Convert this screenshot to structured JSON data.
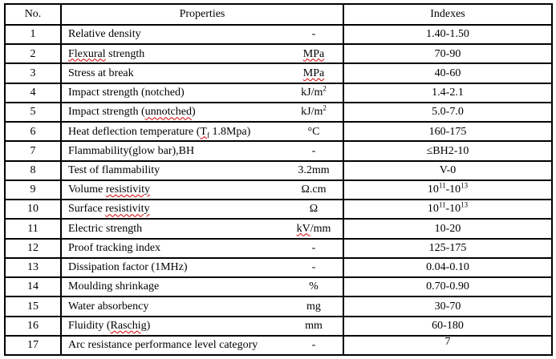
{
  "page": {
    "background_color": "#ffffff",
    "text_color": "#000000"
  },
  "table": {
    "border_color": "#000000",
    "spellcheck_underline_color": "#d40000",
    "headers": {
      "no": "No.",
      "properties": "Properties",
      "indexes": "Indexes"
    },
    "rows": [
      {
        "no": "1",
        "property": [
          {
            "t": "Relative density"
          }
        ],
        "unit": [
          {
            "t": "-"
          }
        ],
        "index": [
          {
            "t": "1.40-1.50"
          }
        ]
      },
      {
        "no": "2",
        "property": [
          {
            "t": "Flexural",
            "misspelled": true
          },
          {
            "t": " strength"
          }
        ],
        "unit": [
          {
            "t": "MPa",
            "misspelled": true
          }
        ],
        "index": [
          {
            "t": "70-90"
          }
        ]
      },
      {
        "no": "3",
        "property": [
          {
            "t": "Stress at break"
          }
        ],
        "unit": [
          {
            "t": "MPa",
            "misspelled": true
          }
        ],
        "index": [
          {
            "t": "40-60"
          }
        ]
      },
      {
        "no": "4",
        "property": [
          {
            "t": "Impact strength (notched)"
          }
        ],
        "unit": [
          {
            "t": "kJ/m"
          },
          {
            "t": "2",
            "sup": true
          }
        ],
        "index": [
          {
            "t": "1.4-2.1"
          }
        ]
      },
      {
        "no": "5",
        "property": [
          {
            "t": "Impact strength ("
          },
          {
            "t": "unnotched",
            "misspelled": true
          },
          {
            "t": ")"
          }
        ],
        "unit": [
          {
            "t": "kJ/m"
          },
          {
            "t": "2",
            "sup": true
          }
        ],
        "index": [
          {
            "t": "5.0-7.0"
          }
        ]
      },
      {
        "no": "6",
        "property": [
          {
            "t": "Heat deflection temperature ("
          },
          {
            "t": "T",
            "misspelled": true
          },
          {
            "t": "f",
            "sub": true,
            "misspelled": true
          },
          {
            "t": " 1.8Mpa)"
          }
        ],
        "unit": [
          {
            "t": "°C"
          }
        ],
        "index": [
          {
            "t": "160-175"
          }
        ]
      },
      {
        "no": "7",
        "property": [
          {
            "t": "Flammability(glow bar),BH"
          }
        ],
        "unit": [
          {
            "t": "-"
          }
        ],
        "index": [
          {
            "t": "≤BH2-10"
          }
        ]
      },
      {
        "no": "8",
        "property": [
          {
            "t": "Test of flammability"
          }
        ],
        "unit": [
          {
            "t": "3.2mm"
          }
        ],
        "index": [
          {
            "t": "V-0"
          }
        ]
      },
      {
        "no": "9",
        "property": [
          {
            "t": "Volume "
          },
          {
            "t": "resistivity",
            "misspelled": true
          }
        ],
        "unit": [
          {
            "t": "Ω.cm"
          }
        ],
        "index": [
          {
            "t": "10"
          },
          {
            "t": "11",
            "sup": true
          },
          {
            "t": "-10"
          },
          {
            "t": "13",
            "sup": true
          }
        ]
      },
      {
        "no": "10",
        "property": [
          {
            "t": "Surface "
          },
          {
            "t": "resistivity",
            "misspelled": true
          }
        ],
        "unit": [
          {
            "t": "Ω"
          }
        ],
        "index": [
          {
            "t": "10"
          },
          {
            "t": "11",
            "sup": true
          },
          {
            "t": "-10"
          },
          {
            "t": "13",
            "sup": true
          }
        ]
      },
      {
        "no": "11",
        "property": [
          {
            "t": "Electric strength"
          }
        ],
        "unit": [
          {
            "t": "kV",
            "misspelled": true
          },
          {
            "t": "/mm"
          }
        ],
        "index": [
          {
            "t": "10-20"
          }
        ]
      },
      {
        "no": "12",
        "property": [
          {
            "t": "Proof tracking index"
          }
        ],
        "unit": [
          {
            "t": "-"
          }
        ],
        "index": [
          {
            "t": "125-175"
          }
        ]
      },
      {
        "no": "13",
        "property": [
          {
            "t": "Dissipation factor (1MHz)"
          }
        ],
        "unit": [
          {
            "t": "-"
          }
        ],
        "index": [
          {
            "t": "0.04-0.10"
          }
        ]
      },
      {
        "no": "14",
        "property": [
          {
            "t": "Moulding shrinkage"
          }
        ],
        "unit": [
          {
            "t": "%"
          }
        ],
        "index": [
          {
            "t": "0.70-0.90"
          }
        ]
      },
      {
        "no": "15",
        "property": [
          {
            "t": "Water absorbency"
          }
        ],
        "unit": [
          {
            "t": "mg"
          }
        ],
        "index": [
          {
            "t": "30-70"
          }
        ]
      },
      {
        "no": "16",
        "property": [
          {
            "t": "Fluidity ("
          },
          {
            "t": "Raschig",
            "misspelled": true
          },
          {
            "t": ")"
          }
        ],
        "unit": [
          {
            "t": "mm"
          }
        ],
        "index": [
          {
            "t": "60-180"
          }
        ]
      },
      {
        "no": "17",
        "property": [
          {
            "t": "Arc resistance performance level category"
          }
        ],
        "unit": [
          {
            "t": "-"
          }
        ],
        "index": [
          {
            "t": "7"
          }
        ],
        "index_valign": "top"
      }
    ]
  }
}
